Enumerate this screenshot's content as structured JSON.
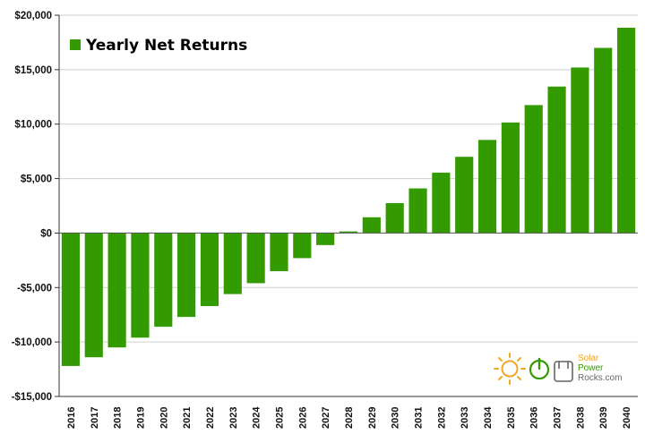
{
  "chart_data": {
    "type": "bar",
    "title": "",
    "xlabel": "",
    "ylabel": "",
    "series": [
      {
        "name": "Yearly Net Returns",
        "color": "#339A00",
        "values": [
          -12200,
          -11400,
          -10500,
          -9600,
          -8600,
          -7700,
          -6700,
          -5600,
          -4600,
          -3500,
          -2300,
          -1100,
          150,
          1450,
          2750,
          4100,
          5550,
          7000,
          8550,
          10150,
          11750,
          13450,
          15200,
          17000,
          18850
        ]
      }
    ],
    "categories": [
      "2016",
      "2017",
      "2018",
      "2019",
      "2020",
      "2021",
      "2022",
      "2023",
      "2024",
      "2025",
      "2026",
      "2027",
      "2028",
      "2029",
      "2030",
      "2031",
      "2032",
      "2033",
      "2034",
      "2035",
      "2036",
      "2037",
      "2038",
      "2039",
      "2040"
    ],
    "ylim": [
      -15000,
      20000
    ],
    "yticks": [
      20000,
      15000,
      10000,
      5000,
      0,
      -5000,
      -10000,
      -15000
    ],
    "ytick_labels": [
      "$20,000",
      "$15,000",
      "$10,000",
      "$5,000",
      "$0",
      "-$5,000",
      "-$10,000",
      "-$15,000"
    ],
    "grid": true,
    "legend_position": "top-left"
  },
  "logo": {
    "line1": "Solar",
    "line2": "Power",
    "line3": "Rocks.com",
    "icon_sun": "sun-icon",
    "icon_power": "power-icon",
    "icon_hand": "rock-hand-icon"
  }
}
